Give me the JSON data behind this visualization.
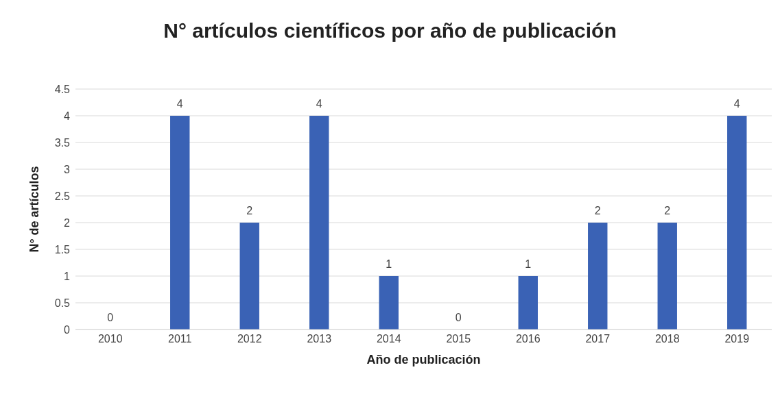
{
  "chart_data": {
    "type": "bar",
    "title": "N° artículos científicos por año de publicación",
    "xlabel": "Año de publicación",
    "ylabel": "N° de artículos",
    "categories": [
      "2010",
      "2011",
      "2012",
      "2013",
      "2014",
      "2015",
      "2016",
      "2017",
      "2018",
      "2019"
    ],
    "values": [
      0,
      4,
      2,
      4,
      1,
      0,
      1,
      2,
      2,
      4
    ],
    "color": "#3a62b5",
    "ylim": [
      0,
      4.5
    ],
    "yticks": [
      0,
      0.5,
      1,
      1.5,
      2,
      2.5,
      3,
      3.5,
      4,
      4.5
    ],
    "grid": "y",
    "data_labels": true
  }
}
